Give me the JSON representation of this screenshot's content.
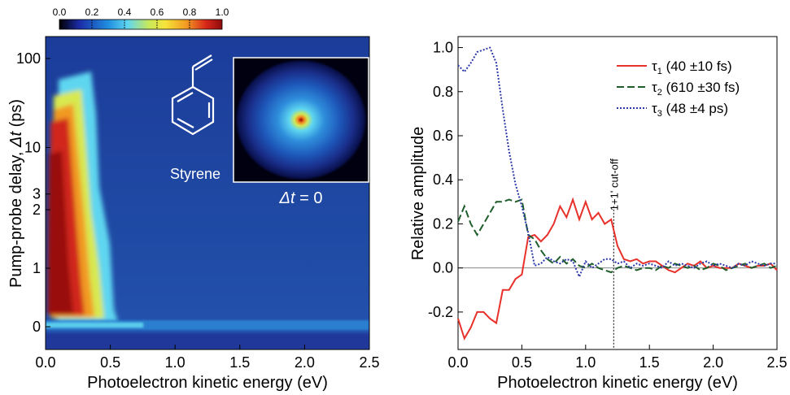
{
  "chart_data": [
    {
      "type": "heatmap",
      "title": "",
      "xlabel": "Photoelectron kinetic energy (eV)",
      "ylabel_main": "Pump-probe delay, ",
      "ylabel_sym": "Δt",
      "ylabel_unit": " (ps)",
      "xlim": [
        0.0,
        2.5
      ],
      "xticks": [
        "0.0",
        "0.5",
        "1.0",
        "1.5",
        "2.0",
        "2.5"
      ],
      "yticks": [
        "0",
        "1",
        "2",
        "3",
        "10",
        "100"
      ],
      "y_scale": "piecewise (linear 0-2 ps, logarithmic above)",
      "colorbar": {
        "ticks": [
          "0.0",
          "0.2",
          "0.4",
          "0.6",
          "0.8",
          "1.0"
        ],
        "range": [
          0.0,
          1.0
        ],
        "colors": [
          "#000000",
          "#1b2aa5",
          "#1f8ee0",
          "#5fd6f0",
          "#c8e85a",
          "#f6e43a",
          "#f19a22",
          "#d8271a",
          "#8e0b0c"
        ]
      },
      "inset": {
        "molecule_label": "Styrene",
        "image_label_sym": "Δt",
        "image_label_rest": " = 0"
      },
      "features": [
        {
          "name": "intense band",
          "x_range_eV": [
            0.0,
            0.5
          ],
          "delay_range_ps": [
            0,
            30
          ]
        },
        {
          "name": "time-zero cross-correlation",
          "delay_ps": 0.05,
          "x_range_eV": [
            0.0,
            2.5
          ]
        }
      ]
    },
    {
      "type": "line",
      "title": "",
      "xlabel": "Photoelectron kinetic energy (eV)",
      "ylabel": "Relative amplitude",
      "xlim": [
        0.0,
        2.5
      ],
      "ylim": [
        -0.37,
        1.05
      ],
      "xticks": [
        0.0,
        0.5,
        1.0,
        1.5,
        2.0,
        2.5
      ],
      "yticks": [
        -0.2,
        0.0,
        0.2,
        0.4,
        0.6,
        0.8,
        1.0
      ],
      "legend_position": "top-right",
      "annotation": {
        "text": "1+1' cut-off",
        "x": 1.22
      },
      "series": [
        {
          "name_sym": "τ",
          "name_sub": "1",
          "name_rest": " (40 ±10 fs)",
          "color": "#e8312a",
          "dash": "solid",
          "x": [
            0.0,
            0.05,
            0.1,
            0.15,
            0.2,
            0.25,
            0.3,
            0.35,
            0.4,
            0.45,
            0.5,
            0.55,
            0.6,
            0.65,
            0.7,
            0.75,
            0.8,
            0.85,
            0.9,
            0.95,
            1.0,
            1.05,
            1.1,
            1.15,
            1.2,
            1.25,
            1.3,
            1.35,
            1.4,
            1.45,
            1.5,
            1.55,
            1.6,
            1.65,
            1.7,
            1.75,
            1.8,
            1.85,
            1.9,
            1.95,
            2.0,
            2.05,
            2.1,
            2.15,
            2.2,
            2.25,
            2.3,
            2.35,
            2.4,
            2.45,
            2.5
          ],
          "y": [
            -0.23,
            -0.32,
            -0.27,
            -0.2,
            -0.2,
            -0.23,
            -0.25,
            -0.1,
            -0.1,
            -0.05,
            -0.03,
            0.14,
            0.15,
            0.12,
            0.15,
            0.2,
            0.28,
            0.23,
            0.31,
            0.22,
            0.3,
            0.22,
            0.25,
            0.2,
            0.22,
            0.1,
            0.04,
            0.03,
            0.04,
            0.02,
            0.03,
            0.03,
            0.01,
            -0.01,
            -0.02,
            0.0,
            0.02,
            0.01,
            0.03,
            0.0,
            0.01,
            0.0,
            0.0,
            0.0,
            0.02,
            0.01,
            0.0,
            0.01,
            0.01,
            0.02,
            -0.01
          ]
        },
        {
          "name_sym": "τ",
          "name_sub": "2",
          "name_rest": " (610 ±30 fs)",
          "color": "#1f5e2b",
          "dash": "long-dash",
          "x": [
            0.0,
            0.05,
            0.1,
            0.15,
            0.2,
            0.25,
            0.3,
            0.35,
            0.4,
            0.45,
            0.5,
            0.55,
            0.6,
            0.65,
            0.7,
            0.75,
            0.8,
            0.85,
            0.9,
            0.95,
            1.0,
            1.05,
            1.1,
            1.15,
            1.2,
            1.25,
            1.3,
            1.35,
            1.4,
            1.45,
            1.5,
            1.55,
            1.6,
            1.65,
            1.7,
            1.75,
            1.8,
            1.85,
            1.9,
            1.95,
            2.0,
            2.05,
            2.1,
            2.15,
            2.2,
            2.25,
            2.3,
            2.35,
            2.4,
            2.45,
            2.5
          ],
          "y": [
            0.21,
            0.28,
            0.2,
            0.15,
            0.2,
            0.25,
            0.3,
            0.3,
            0.31,
            0.3,
            0.31,
            0.15,
            0.13,
            0.08,
            0.04,
            0.02,
            0.05,
            0.02,
            0.04,
            0.01,
            0.0,
            0.02,
            0.0,
            -0.01,
            -0.02,
            0.0,
            0.01,
            0.0,
            -0.01,
            0.0,
            0.0,
            -0.01,
            0.01,
            0.0,
            0.02,
            0.01,
            0.0,
            0.01,
            -0.01,
            0.0,
            0.02,
            0.01,
            -0.01,
            0.0,
            0.01,
            0.02,
            0.0,
            0.01,
            0.02,
            0.0,
            0.01
          ]
        },
        {
          "name_sym": "τ",
          "name_sub": "3",
          "name_rest": " (48 ±4 ps)",
          "color": "#2b3aa8",
          "dash": "dotted",
          "x": [
            0.0,
            0.05,
            0.1,
            0.15,
            0.2,
            0.25,
            0.3,
            0.35,
            0.4,
            0.45,
            0.5,
            0.55,
            0.6,
            0.65,
            0.7,
            0.75,
            0.8,
            0.85,
            0.9,
            0.95,
            1.0,
            1.05,
            1.1,
            1.15,
            1.2,
            1.25,
            1.3,
            1.35,
            1.4,
            1.45,
            1.5,
            1.55,
            1.6,
            1.65,
            1.7,
            1.75,
            1.8,
            1.85,
            1.9,
            1.95,
            2.0,
            2.05,
            2.1,
            2.15,
            2.2,
            2.25,
            2.3,
            2.35,
            2.4,
            2.45,
            2.5
          ],
          "y": [
            0.92,
            0.89,
            0.93,
            0.98,
            0.99,
            1.0,
            0.93,
            0.72,
            0.53,
            0.38,
            0.28,
            0.16,
            0.01,
            0.02,
            0.05,
            0.03,
            0.02,
            0.04,
            0.03,
            -0.04,
            0.03,
            0.0,
            0.02,
            0.04,
            0.04,
            0.02,
            0.03,
            0.0,
            0.02,
            0.01,
            0.02,
            0.01,
            0.0,
            0.03,
            0.01,
            0.02,
            0.01,
            0.0,
            0.02,
            0.03,
            0.01,
            0.02,
            0.01,
            0.0,
            0.02,
            0.01,
            0.03,
            0.02,
            0.01,
            0.02,
            0.02
          ]
        }
      ]
    }
  ]
}
